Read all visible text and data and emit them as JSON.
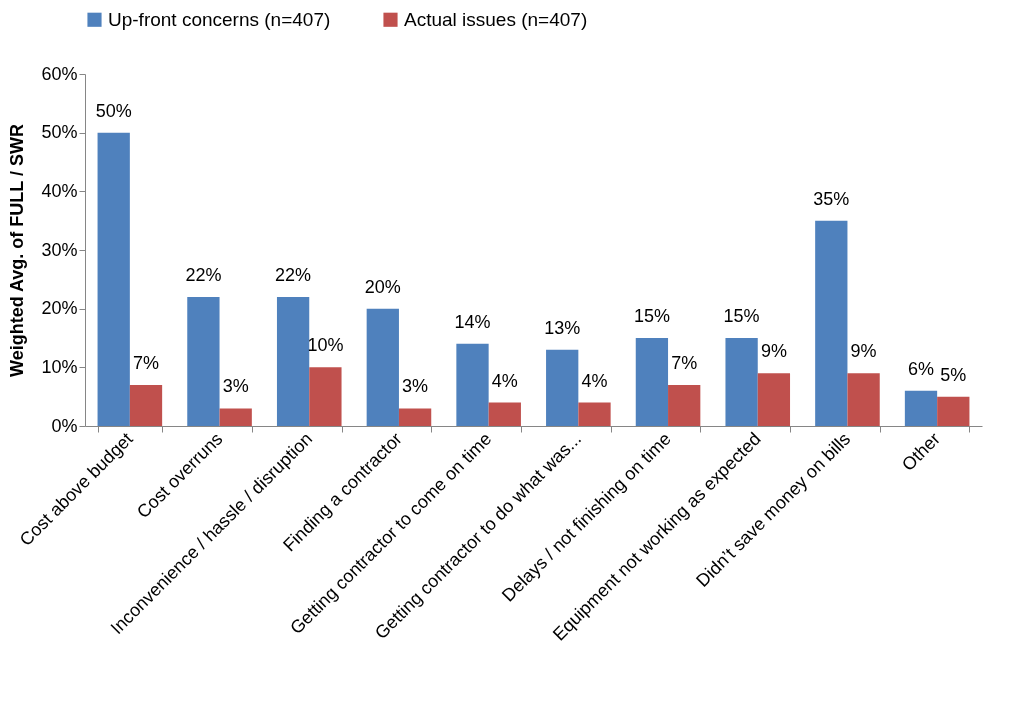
{
  "chart_data": {
    "type": "bar",
    "ylabel": "Weighted Avg. of FULL / SWR",
    "categories": [
      "Cost above budget",
      "Cost overruns",
      "Inconvenience / hassle / disruption",
      "Finding a contractor",
      "Getting contractor to come on time",
      "Getting contractor to do what was...",
      "Delays / not finishing on time",
      "Equipment not working as expected",
      "Didn’t save money on bills",
      "Other"
    ],
    "series": [
      {
        "name": "Up-front concerns (n=407)",
        "color": "#4f81bd",
        "values": [
          50,
          22,
          22,
          20,
          14,
          13,
          15,
          15,
          35,
          6
        ],
        "value_labels": [
          "50%",
          "22%",
          "22%",
          "20%",
          "14%",
          "13%",
          "15%",
          "15%",
          "35%",
          "6%"
        ]
      },
      {
        "name": "Actual issues (n=407)",
        "color": "#c0504d",
        "values": [
          7,
          3,
          10,
          3,
          4,
          4,
          7,
          9,
          9,
          5
        ],
        "value_labels": [
          "7%",
          "3%",
          "10%",
          "3%",
          "4%",
          "4%",
          "7%",
          "9%",
          "9%",
          "5%"
        ]
      }
    ],
    "ylim": [
      0,
      60
    ],
    "yticks": [
      {
        "value": 0,
        "label": "0%"
      },
      {
        "value": 10,
        "label": "10%"
      },
      {
        "value": 20,
        "label": "20%"
      },
      {
        "value": 30,
        "label": "30%"
      },
      {
        "value": 40,
        "label": "40%"
      },
      {
        "value": 50,
        "label": "50%"
      },
      {
        "value": 60,
        "label": "60%"
      }
    ],
    "legend": "top"
  }
}
